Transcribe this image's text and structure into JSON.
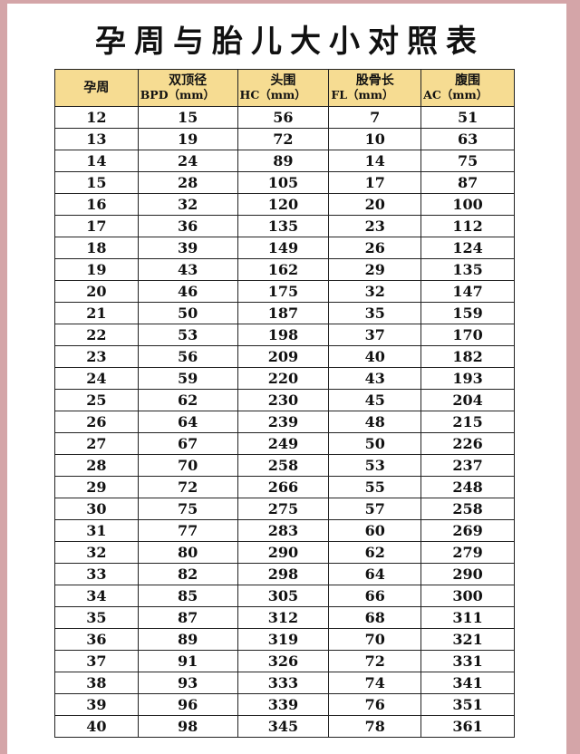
{
  "title": "孕周与胎儿大小对照表",
  "colors": {
    "border_frame": "#d4a5a8",
    "header_bg": "#f6dc92"
  },
  "headers": [
    {
      "label": "孕周",
      "sub": ""
    },
    {
      "label": "双顶径",
      "sub": "BPD（mm）"
    },
    {
      "label": "头围",
      "sub": "HC（mm）"
    },
    {
      "label": "股骨长",
      "sub": "FL（mm）"
    },
    {
      "label": "腹围",
      "sub": "AC（mm）"
    }
  ],
  "rows": [
    [
      "12",
      "15",
      "56",
      "7",
      "51"
    ],
    [
      "13",
      "19",
      "72",
      "10",
      "63"
    ],
    [
      "14",
      "24",
      "89",
      "14",
      "75"
    ],
    [
      "15",
      "28",
      "105",
      "17",
      "87"
    ],
    [
      "16",
      "32",
      "120",
      "20",
      "100"
    ],
    [
      "17",
      "36",
      "135",
      "23",
      "112"
    ],
    [
      "18",
      "39",
      "149",
      "26",
      "124"
    ],
    [
      "19",
      "43",
      "162",
      "29",
      "135"
    ],
    [
      "20",
      "46",
      "175",
      "32",
      "147"
    ],
    [
      "21",
      "50",
      "187",
      "35",
      "159"
    ],
    [
      "22",
      "53",
      "198",
      "37",
      "170"
    ],
    [
      "23",
      "56",
      "209",
      "40",
      "182"
    ],
    [
      "24",
      "59",
      "220",
      "43",
      "193"
    ],
    [
      "25",
      "62",
      "230",
      "45",
      "204"
    ],
    [
      "26",
      "64",
      "239",
      "48",
      "215"
    ],
    [
      "27",
      "67",
      "249",
      "50",
      "226"
    ],
    [
      "28",
      "70",
      "258",
      "53",
      "237"
    ],
    [
      "29",
      "72",
      "266",
      "55",
      "248"
    ],
    [
      "30",
      "75",
      "275",
      "57",
      "258"
    ],
    [
      "31",
      "77",
      "283",
      "60",
      "269"
    ],
    [
      "32",
      "80",
      "290",
      "62",
      "279"
    ],
    [
      "33",
      "82",
      "298",
      "64",
      "290"
    ],
    [
      "34",
      "85",
      "305",
      "66",
      "300"
    ],
    [
      "35",
      "87",
      "312",
      "68",
      "311"
    ],
    [
      "36",
      "89",
      "319",
      "70",
      "321"
    ],
    [
      "37",
      "91",
      "326",
      "72",
      "331"
    ],
    [
      "38",
      "93",
      "333",
      "74",
      "341"
    ],
    [
      "39",
      "96",
      "339",
      "76",
      "351"
    ],
    [
      "40",
      "98",
      "345",
      "78",
      "361"
    ]
  ]
}
